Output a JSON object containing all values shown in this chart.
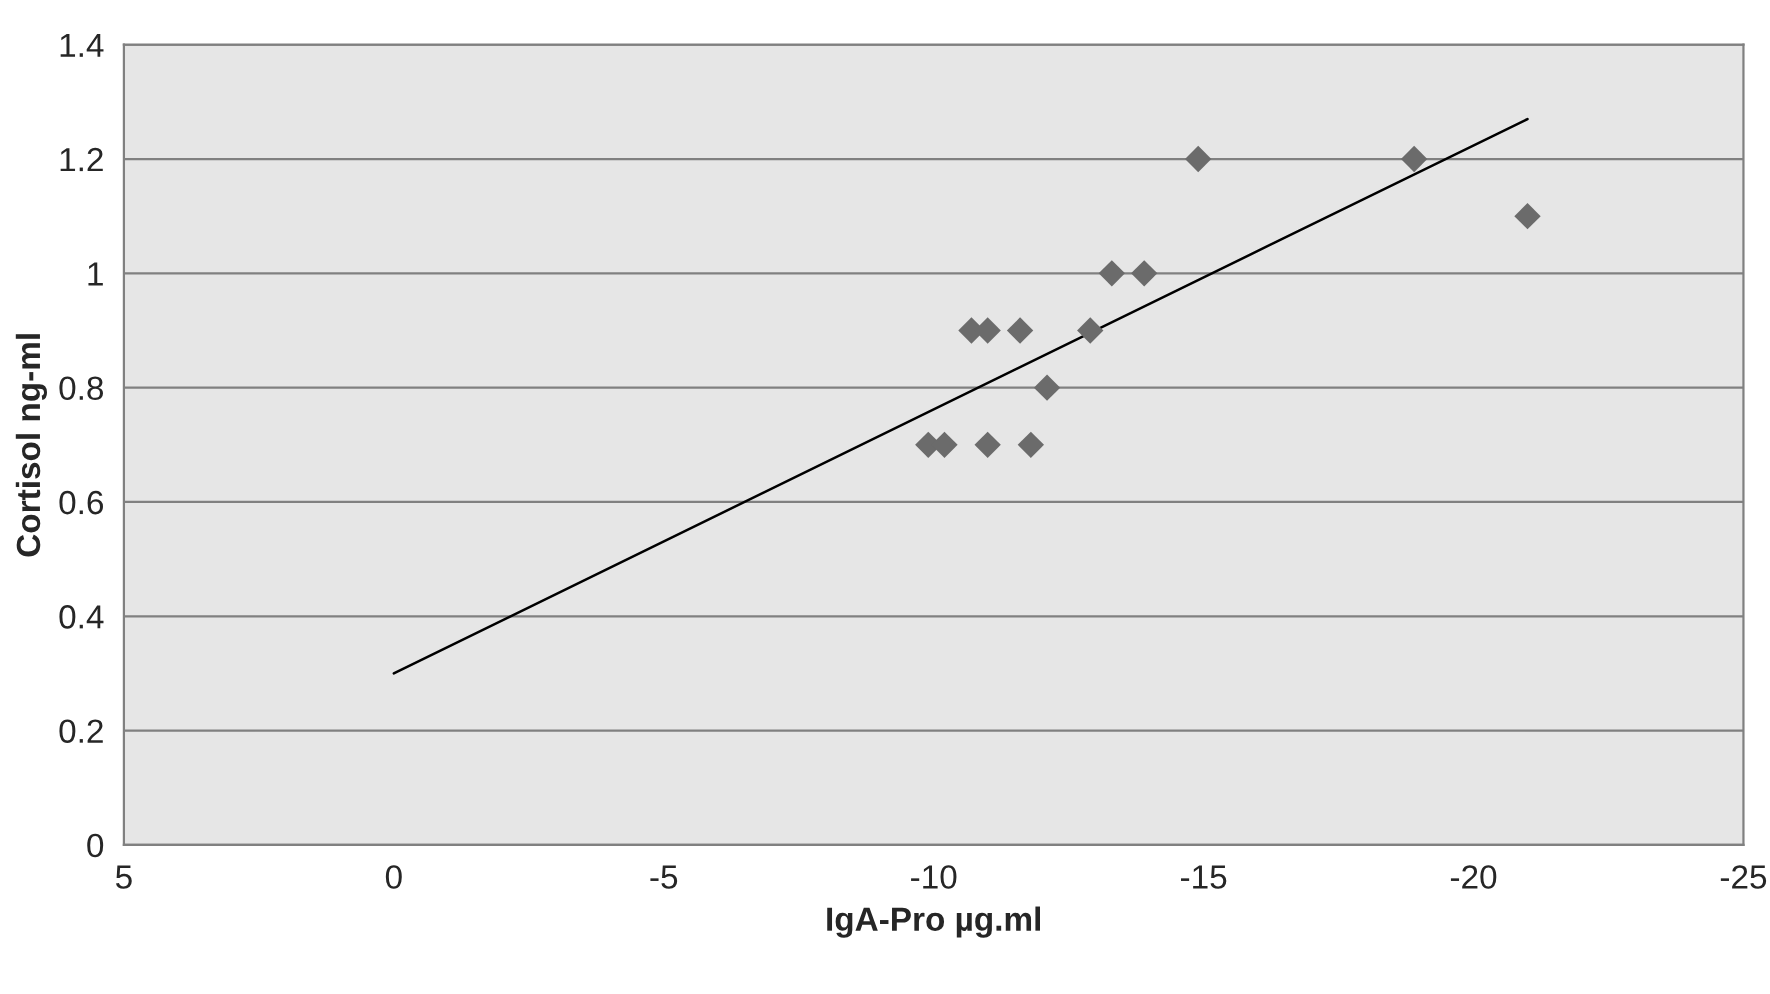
{
  "chart_data": {
    "type": "scatter",
    "xlabel": "IgA-Pro µg.ml",
    "ylabel": "Cortisol ng-ml",
    "xlim": [
      5,
      -25
    ],
    "xticks": [
      5,
      0,
      -5,
      -10,
      -15,
      -20,
      -25
    ],
    "ylim": [
      0,
      1.4
    ],
    "yticks": [
      0,
      0.2,
      0.4,
      0.6,
      0.8,
      1,
      1.2,
      1.4
    ],
    "grid": "y",
    "marker": "diamond",
    "series": [
      {
        "color": "#6b6b6b",
        "x": [
          -9.9,
          -10.2,
          -11,
          -11.8,
          -10.7,
          -11,
          -11.6,
          -12.9,
          -12.1,
          -13.3,
          -13.9,
          -14.9,
          -18.9,
          -21
        ],
        "values": [
          0.7,
          0.7,
          0.7,
          0.7,
          0.9,
          0.9,
          0.9,
          0.9,
          0.8,
          1,
          1,
          1.2,
          1.2,
          1.1
        ]
      },
      {
        "type": "line",
        "marker": "none",
        "color": "#000000",
        "x": [
          0,
          -21
        ],
        "values": [
          0.3,
          1.27
        ]
      }
    ]
  }
}
